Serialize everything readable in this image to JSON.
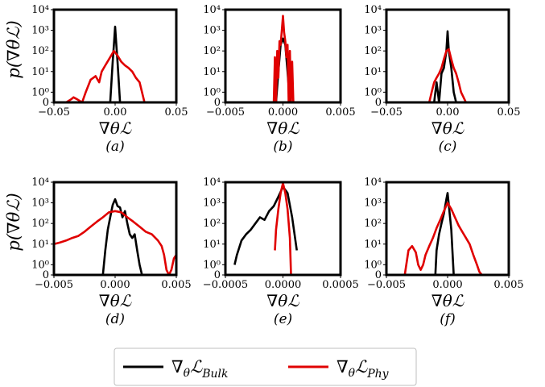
{
  "chart_data": [
    {
      "type": "line",
      "panel_label": "(a)",
      "xlabel": "∇θℒ",
      "ylabel": "p(∇θℒ)",
      "xlim": [
        -0.05,
        0.05
      ],
      "yscale": "symlog",
      "ylim": [
        0,
        10000
      ],
      "xticks": [
        "−0.05",
        "0.00",
        "0.05"
      ],
      "yticks": [
        "10⁴",
        "10³",
        "10²",
        "10¹",
        "10⁰",
        "0"
      ],
      "series": [
        {
          "name": "∇θℒBulk",
          "color": "#000000",
          "x": [
            -0.006,
            -0.004,
            -0.002,
            -0.001,
            0.0,
            0.001,
            0.002,
            0.004,
            0.006
          ],
          "y": [
            0,
            0,
            30,
            200,
            1500,
            200,
            30,
            0,
            0
          ]
        },
        {
          "name": "∇θℒPhy",
          "color": "#e00000",
          "x": [
            -0.04,
            -0.036,
            -0.034,
            -0.031,
            -0.027,
            -0.024,
            -0.02,
            -0.016,
            -0.013,
            -0.011,
            -0.008,
            -0.004,
            -0.001,
            0.002,
            0.005,
            0.008,
            0.011,
            0.014,
            0.017,
            0.02,
            0.022,
            0.024,
            0.027
          ],
          "y": [
            0,
            0.3,
            0.5,
            0.3,
            0,
            1,
            4,
            6,
            3,
            10,
            20,
            50,
            100,
            60,
            30,
            20,
            15,
            10,
            5,
            3,
            1,
            0,
            0
          ]
        }
      ]
    },
    {
      "type": "line",
      "panel_label": "(b)",
      "xlabel": "∇θℒ",
      "ylabel": "",
      "xlim": [
        -0.005,
        0.005
      ],
      "yscale": "symlog",
      "ylim": [
        0,
        10000
      ],
      "xticks": [
        "−0.005",
        "0.000",
        "0.005"
      ],
      "yticks": [
        "10⁴",
        "10³",
        "10²",
        "10¹",
        "10⁰",
        "0"
      ],
      "series": [
        {
          "name": "∇θℒBulk",
          "color": "#000000",
          "x": [
            -0.0006,
            -0.0004,
            -0.0002,
            0.0,
            0.0002,
            0.0004,
            0.0006
          ],
          "y": [
            0,
            10,
            200,
            400,
            200,
            10,
            0
          ]
        },
        {
          "name": "∇θℒPhy",
          "color": "#e00000",
          "x": [
            -0.0008,
            -0.0007,
            -0.0006,
            -0.0005,
            -0.0004,
            -0.0003,
            -0.0002,
            -0.0001,
            0.0,
            0.0001,
            0.0002,
            0.0003,
            0.0004,
            0.0005,
            0.0006,
            0.0007,
            0.0008,
            0.0009
          ],
          "y": [
            0,
            50,
            0,
            100,
            5,
            300,
            200,
            1000,
            5000,
            800,
            300,
            50,
            200,
            0,
            100,
            0,
            30,
            0
          ]
        }
      ]
    },
    {
      "type": "line",
      "panel_label": "(c)",
      "xlabel": "∇θℒ",
      "ylabel": "",
      "xlim": [
        -0.05,
        0.05
      ],
      "yscale": "symlog",
      "ylim": [
        0,
        10000
      ],
      "xticks": [
        "−0.05",
        "0.00",
        "0.05"
      ],
      "yticks": [
        "10⁴",
        "10³",
        "10²",
        "10¹",
        "10⁰",
        "0"
      ],
      "series": [
        {
          "name": "∇θℒBulk",
          "color": "#000000",
          "x": [
            -0.011,
            -0.009,
            -0.007,
            -0.005,
            -0.003,
            -0.001,
            0.0,
            0.001,
            0.003,
            0.005,
            0.007
          ],
          "y": [
            0,
            3,
            0,
            8,
            15,
            100,
            900,
            100,
            15,
            1,
            0
          ]
        },
        {
          "name": "∇θℒPhy",
          "color": "#e00000",
          "x": [
            -0.015,
            -0.013,
            -0.011,
            -0.009,
            -0.007,
            -0.005,
            -0.003,
            -0.001,
            0.001,
            0.003,
            0.005,
            0.007,
            0.009,
            0.011,
            0.013,
            0.015
          ],
          "y": [
            0,
            1,
            3,
            5,
            8,
            15,
            40,
            100,
            120,
            40,
            15,
            8,
            3,
            1,
            0.5,
            0
          ]
        }
      ]
    },
    {
      "type": "line",
      "panel_label": "(d)",
      "xlabel": "∇θℒ",
      "ylabel": "p(∇θℒ)",
      "xlim": [
        -0.005,
        0.005
      ],
      "yscale": "symlog",
      "ylim": [
        0,
        10000
      ],
      "xticks": [
        "−0.005",
        "0.000",
        "0.005"
      ],
      "yticks": [
        "10⁴",
        "10³",
        "10²",
        "10¹",
        "10⁰",
        "0"
      ],
      "series": [
        {
          "name": "∇θℒBulk",
          "color": "#000000",
          "x": [
            -0.001,
            -0.0008,
            -0.0006,
            -0.0004,
            -0.0002,
            0.0,
            0.0002,
            0.0004,
            0.0006,
            0.0008,
            0.001,
            0.0012,
            0.0014,
            0.0016,
            0.0018,
            0.002,
            0.0022
          ],
          "y": [
            0,
            5,
            50,
            200,
            800,
            1500,
            700,
            600,
            200,
            400,
            100,
            30,
            20,
            30,
            5,
            1,
            0
          ]
        },
        {
          "name": "∇θℒPhy",
          "color": "#e00000",
          "x": [
            -0.005,
            -0.0045,
            -0.004,
            -0.0035,
            -0.003,
            -0.0025,
            -0.002,
            -0.0015,
            -0.001,
            -0.0005,
            0.0,
            0.0005,
            0.001,
            0.0015,
            0.002,
            0.0025,
            0.003,
            0.0035,
            0.0038,
            0.004,
            0.0042,
            0.0044,
            0.0046,
            0.0048,
            0.005
          ],
          "y": [
            10,
            12,
            15,
            20,
            25,
            40,
            70,
            120,
            200,
            350,
            400,
            350,
            200,
            120,
            70,
            40,
            30,
            15,
            8,
            3,
            0.5,
            0,
            0.5,
            2,
            3
          ]
        }
      ]
    },
    {
      "type": "line",
      "panel_label": "(e)",
      "xlabel": "∇θℒ",
      "ylabel": "",
      "xlim": [
        -0.0005,
        0.0005
      ],
      "yscale": "symlog",
      "ylim": [
        0,
        10000
      ],
      "xticks": [
        "−0.0005",
        "0.0000",
        "0.0005"
      ],
      "yticks": [
        "10⁴",
        "10³",
        "10²",
        "10¹",
        "10⁰",
        "0"
      ],
      "series": [
        {
          "name": "∇θℒBulk",
          "color": "#000000",
          "x": [
            -0.00042,
            -0.0004,
            -0.00036,
            -0.00032,
            -0.00028,
            -0.00024,
            -0.0002,
            -0.00016,
            -0.00012,
            -8e-05,
            -4e-05,
            0.0,
            4e-05,
            8e-05,
            0.00012
          ],
          "y": [
            1,
            3,
            15,
            30,
            50,
            100,
            200,
            150,
            400,
            700,
            2000,
            6000,
            3000,
            200,
            5
          ]
        },
        {
          "name": "∇θℒPhy",
          "color": "#e00000",
          "x": [
            -7e-05,
            -6e-05,
            -4e-05,
            -2e-05,
            0.0,
            2e-05,
            4e-05,
            6e-05,
            7e-05
          ],
          "y": [
            5,
            50,
            500,
            3000,
            9000,
            3000,
            500,
            20,
            0
          ]
        }
      ]
    },
    {
      "type": "line",
      "panel_label": "(f)",
      "xlabel": "∇θℒ",
      "ylabel": "",
      "xlim": [
        -0.005,
        0.005
      ],
      "yscale": "symlog",
      "ylim": [
        0,
        10000
      ],
      "xticks": [
        "−0.005",
        "0.000",
        "0.005"
      ],
      "yticks": [
        "10⁴",
        "10³",
        "10²",
        "10¹",
        "10⁰",
        "0"
      ],
      "series": [
        {
          "name": "∇θℒBulk",
          "color": "#000000",
          "x": [
            -0.001,
            -0.0009,
            -0.0007,
            -0.0005,
            -0.0003,
            -0.0001,
            0.0,
            0.0001,
            0.0003,
            0.0005
          ],
          "y": [
            0,
            5,
            30,
            100,
            300,
            1500,
            3000,
            800,
            50,
            0
          ]
        },
        {
          "name": "∇θℒPhy",
          "color": "#e00000",
          "x": [
            -0.0035,
            -0.0032,
            -0.0029,
            -0.0026,
            -0.0024,
            -0.0022,
            -0.002,
            -0.0018,
            -0.0015,
            -0.0012,
            -0.0009,
            -0.0006,
            -0.0003,
            0.0,
            0.0003,
            0.0006,
            0.0009,
            0.0012,
            0.0015,
            0.0018,
            0.0021,
            0.0024,
            0.0026,
            0.0028
          ],
          "y": [
            0,
            5,
            8,
            4,
            1,
            0.5,
            1,
            3,
            8,
            20,
            60,
            150,
            400,
            1000,
            500,
            200,
            80,
            40,
            20,
            10,
            3,
            1,
            0.3,
            0
          ]
        }
      ]
    }
  ],
  "legend": {
    "entries": [
      {
        "label": "∇θℒBulk",
        "color": "#000000"
      },
      {
        "label": "∇θℒPhy",
        "color": "#e00000"
      }
    ],
    "placement": "bottom-center"
  }
}
